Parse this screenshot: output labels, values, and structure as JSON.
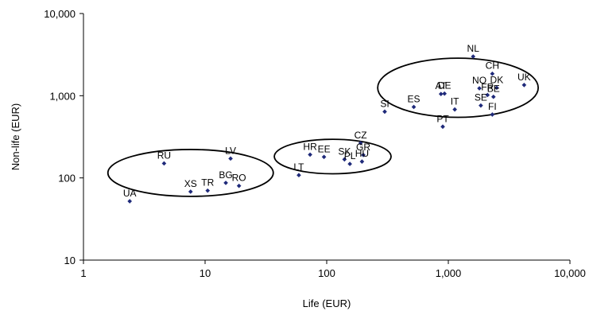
{
  "chart_data": {
    "type": "scatter",
    "title": "",
    "xlabel": "Life (EUR)",
    "ylabel": "Non-life (EUR)",
    "xscale": "log",
    "yscale": "log",
    "xlim": [
      1,
      10000
    ],
    "ylim": [
      10,
      10000
    ],
    "xticks": [
      1,
      10,
      100,
      1000,
      10000
    ],
    "xtick_labels": [
      "1",
      "10",
      "100",
      "1,000",
      "10,000"
    ],
    "yticks": [
      10,
      100,
      1000,
      10000
    ],
    "ytick_labels": [
      "10",
      "100",
      "1,000",
      "10,000"
    ],
    "grid": false,
    "legend": "none",
    "marker_color": "#1f2a7a",
    "points": [
      {
        "label": "UA",
        "x": 2.4,
        "y": 52
      },
      {
        "label": "RU",
        "x": 4.6,
        "y": 150
      },
      {
        "label": "XS",
        "x": 7.6,
        "y": 68
      },
      {
        "label": "TR",
        "x": 10.5,
        "y": 70
      },
      {
        "label": "BG",
        "x": 14.8,
        "y": 87
      },
      {
        "label": "LV",
        "x": 16.2,
        "y": 172
      },
      {
        "label": "RO",
        "x": 19,
        "y": 80
      },
      {
        "label": "LT",
        "x": 59,
        "y": 108
      },
      {
        "label": "HR",
        "x": 73,
        "y": 192
      },
      {
        "label": "EE",
        "x": 95,
        "y": 180
      },
      {
        "label": "SK",
        "x": 140,
        "y": 168
      },
      {
        "label": "PL",
        "x": 155,
        "y": 148
      },
      {
        "label": "HU",
        "x": 195,
        "y": 158
      },
      {
        "label": "CZ",
        "x": 190,
        "y": 265
      },
      {
        "label": "GR",
        "x": 200,
        "y": 190
      },
      {
        "label": "SI",
        "x": 300,
        "y": 640
      },
      {
        "label": "ES",
        "x": 520,
        "y": 730
      },
      {
        "label": "AT",
        "x": 870,
        "y": 1050
      },
      {
        "label": "DE",
        "x": 930,
        "y": 1060
      },
      {
        "label": "PT",
        "x": 900,
        "y": 420
      },
      {
        "label": "IT",
        "x": 1130,
        "y": 680
      },
      {
        "label": "NO",
        "x": 1800,
        "y": 1230
      },
      {
        "label": "SE",
        "x": 1850,
        "y": 760
      },
      {
        "label": "FR",
        "x": 2100,
        "y": 1020
      },
      {
        "label": "BE",
        "x": 2350,
        "y": 970
      },
      {
        "label": "DK",
        "x": 2500,
        "y": 1250
      },
      {
        "label": "FI",
        "x": 2300,
        "y": 590
      },
      {
        "label": "NL",
        "x": 1600,
        "y": 3000
      },
      {
        "label": "CH",
        "x": 2300,
        "y": 1850
      },
      {
        "label": "UK",
        "x": 4200,
        "y": 1350
      }
    ],
    "clusters": [
      {
        "cx": 7.6,
        "cy": 115,
        "rx_decades": 1.36,
        "ry_decades": 0.57
      },
      {
        "cx": 112,
        "cy": 182,
        "rx_decades": 0.96,
        "ry_decades": 0.42
      },
      {
        "cx": 1200,
        "cy": 1250,
        "rx_decades": 1.32,
        "ry_decades": 0.72
      }
    ]
  }
}
